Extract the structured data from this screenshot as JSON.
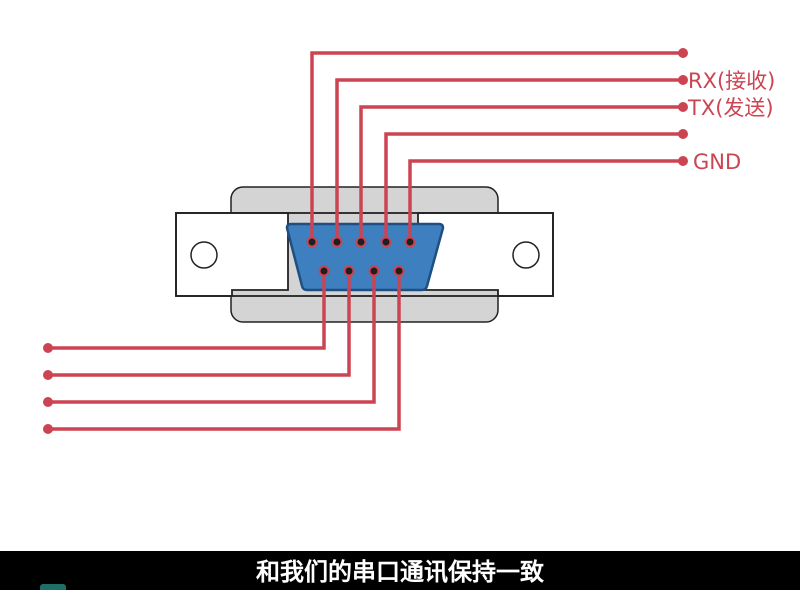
{
  "colors": {
    "wire": "#cc4452",
    "connector_blue": "#3d7fbf",
    "connector_blue_stroke": "#1f4f80",
    "flange_gray": "#d4d4d4",
    "outline": "#222222",
    "label": "#cc4452",
    "subtitle_bg": "#000000",
    "subtitle_text": "#ffffff"
  },
  "connector": {
    "name": "DB9",
    "top_row_pins": 5,
    "bottom_row_pins": 4
  },
  "pin_labels": [
    "",
    "RX(接收)",
    "TX(发送)",
    "",
    "GND"
  ],
  "subtitle": "和我们的串口通讯保持一致"
}
